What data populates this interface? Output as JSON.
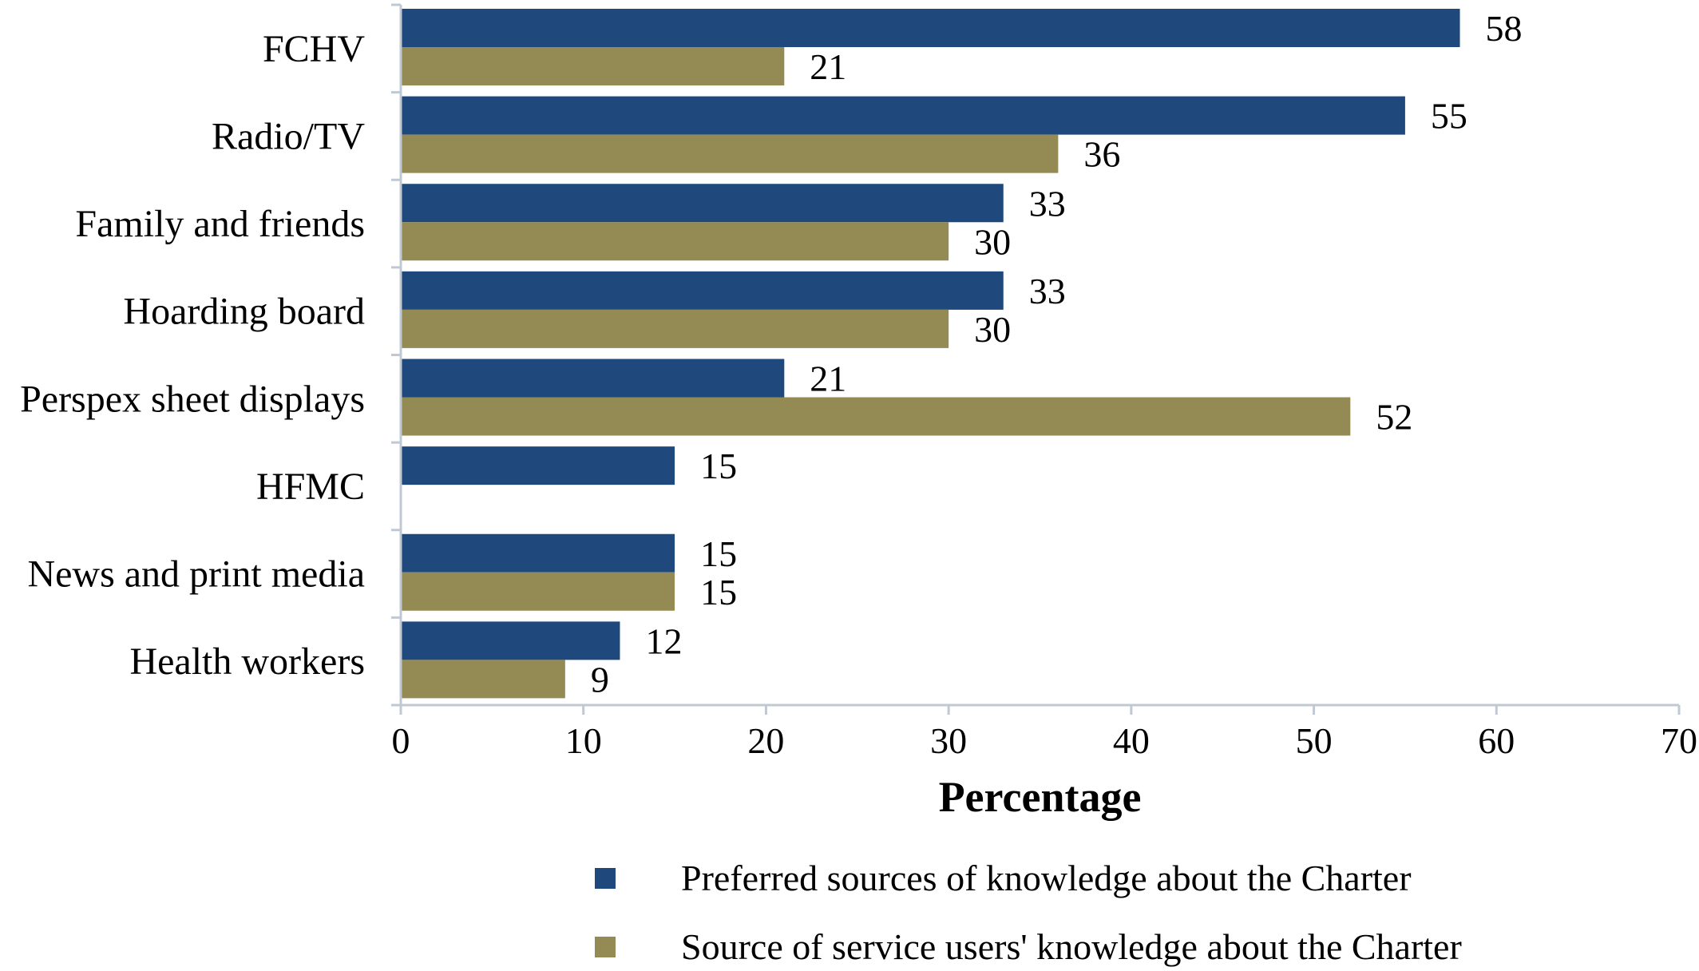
{
  "chart_data": {
    "type": "bar",
    "orientation": "horizontal",
    "categories": [
      "FCHV",
      "Radio/TV",
      "Family and friends",
      "Hoarding board",
      "Perspex sheet displays",
      "HFMC",
      "News and print media",
      "Health workers"
    ],
    "series": [
      {
        "name": "Preferred sources of knowledge about the Charter",
        "color": "#1f497d",
        "values": [
          58,
          55,
          33,
          33,
          21,
          15,
          15,
          12
        ]
      },
      {
        "name": "Source of service users' knowledge about the Charter",
        "color": "#948a54",
        "values": [
          21,
          36,
          30,
          30,
          52,
          null,
          15,
          9
        ]
      }
    ],
    "xlabel": "Percentage",
    "xlim": [
      0,
      70
    ],
    "xticks": [
      0,
      10,
      20,
      30,
      40,
      50,
      60,
      70
    ],
    "grid": false,
    "data_labels": true,
    "legend_position": "bottom"
  }
}
